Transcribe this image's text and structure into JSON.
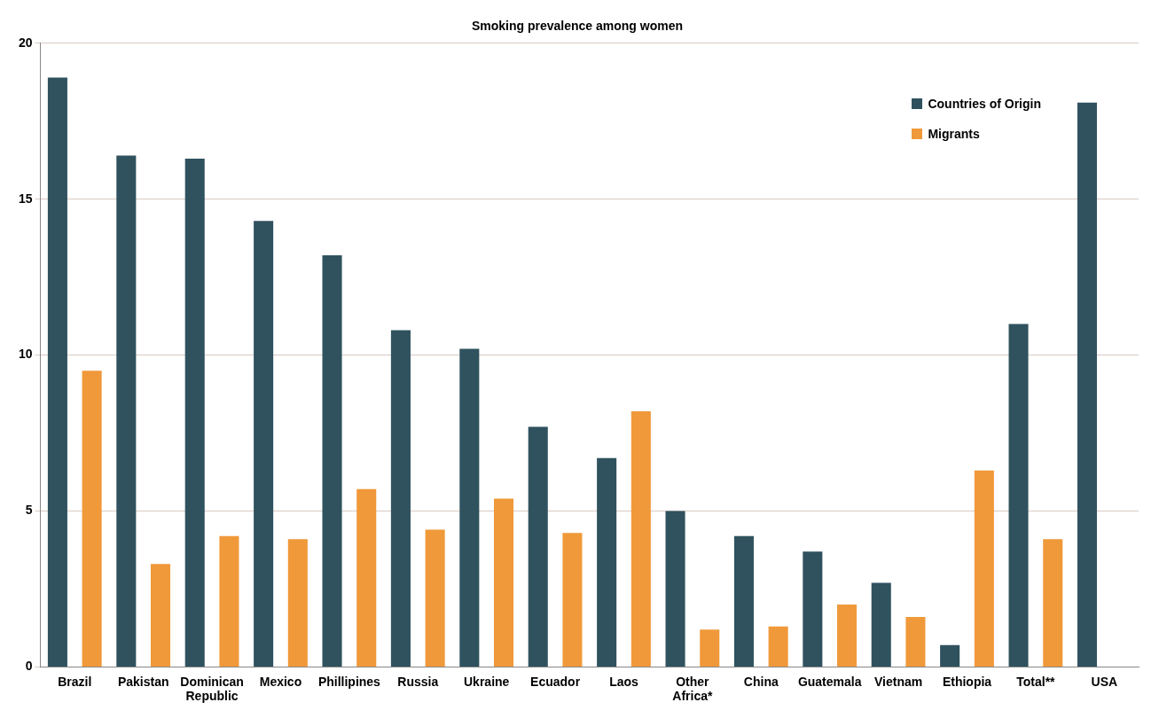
{
  "chart_data": {
    "type": "bar",
    "title": "Smoking prevalence among women",
    "categories": [
      "Brazil",
      "Pakistan",
      "Dominican Republic",
      "Mexico",
      "Phillipines",
      "Russia",
      "Ukraine",
      "Ecuador",
      "Laos",
      "Other Africa*",
      "China",
      "Guatemala",
      "Vietnam",
      "Ethiopia",
      "Total**",
      "USA"
    ],
    "series": [
      {
        "name": "Countries of Origin",
        "color": "#2f525e",
        "values": [
          18.9,
          16.4,
          16.3,
          14.3,
          13.2,
          10.8,
          10.2,
          7.7,
          6.7,
          5.0,
          4.2,
          3.7,
          2.7,
          0.7,
          11.0,
          18.1
        ]
      },
      {
        "name": "Migrants",
        "color": "#f0993a",
        "values": [
          9.5,
          3.3,
          4.2,
          4.1,
          5.7,
          4.4,
          5.4,
          4.3,
          8.2,
          1.2,
          1.3,
          2.0,
          1.6,
          6.3,
          4.1,
          null
        ]
      }
    ],
    "ylim": [
      0,
      20
    ],
    "yticks": [
      0,
      5,
      10,
      15,
      20
    ],
    "grid": "y",
    "legend": "top right"
  }
}
